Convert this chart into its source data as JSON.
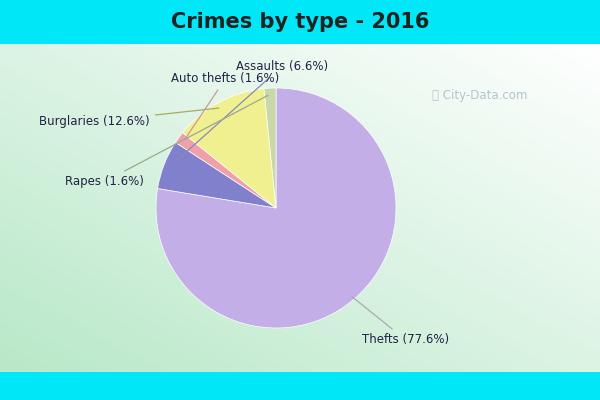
{
  "title": "Crimes by type - 2016",
  "values": [
    77.6,
    6.6,
    1.6,
    12.6,
    1.6
  ],
  "colors": [
    "#c4aee8",
    "#8080cc",
    "#f0a0a8",
    "#f0f090",
    "#c8d8a8"
  ],
  "label_texts": [
    "Thefts (77.6%)",
    "Assaults (6.6%)",
    "Auto thefts (1.6%)",
    "Burglaries (12.6%)",
    "Rapes (1.6%)"
  ],
  "title_color": "#222222",
  "title_fontsize": 15,
  "label_fontsize": 8.5,
  "label_color": "#222244",
  "watermark_text": "ⓘ City-Data.com",
  "watermark_color": "#aabbc8",
  "cyan_color": "#00e8f8",
  "bg_color_topleft": "#ffffff",
  "bg_color_bottomleft": "#b8e8c8",
  "startangle": 90
}
